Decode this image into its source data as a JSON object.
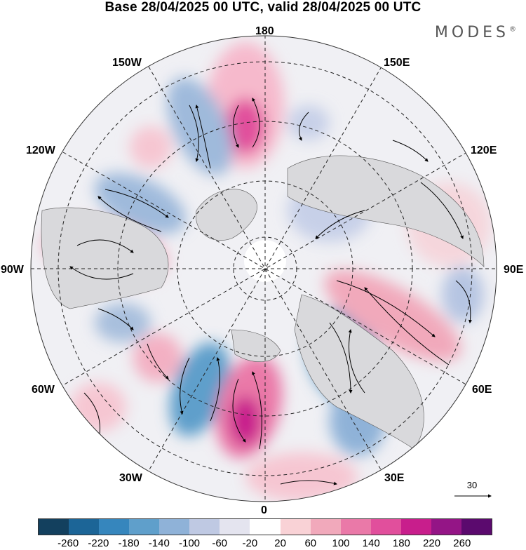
{
  "title": "Base 28/04/2025 00 UTC, valid 28/04/2025 00 UTC",
  "brand": "MODES",
  "brand_mark": "®",
  "longitude_labels": {
    "top": "180",
    "bottom": "0",
    "left": "90W",
    "right": "90E",
    "upper_left_150": "150W",
    "upper_left_120": "120W",
    "upper_right_150": "150E",
    "upper_right_120": "120E",
    "lower_left_60": "60W",
    "lower_left_30": "30W",
    "lower_right_60": "60E",
    "lower_right_30": "30E"
  },
  "reference_vector": {
    "label": "30"
  },
  "colorbar": {
    "colors": [
      "#13405e",
      "#1c6597",
      "#3686bd",
      "#5f9fcb",
      "#8fb2d8",
      "#bfc9e3",
      "#e4e4ef",
      "#ffffff",
      "#f9d2d6",
      "#f1a9bb",
      "#ea79a8",
      "#e14f9c",
      "#c81e8c",
      "#941586",
      "#5b0a6e"
    ],
    "tick_labels": [
      "-260",
      "-220",
      "-180",
      "-140",
      "-100",
      "-60",
      "-20",
      "20",
      "60",
      "100",
      "140",
      "180",
      "220",
      "260"
    ]
  }
}
